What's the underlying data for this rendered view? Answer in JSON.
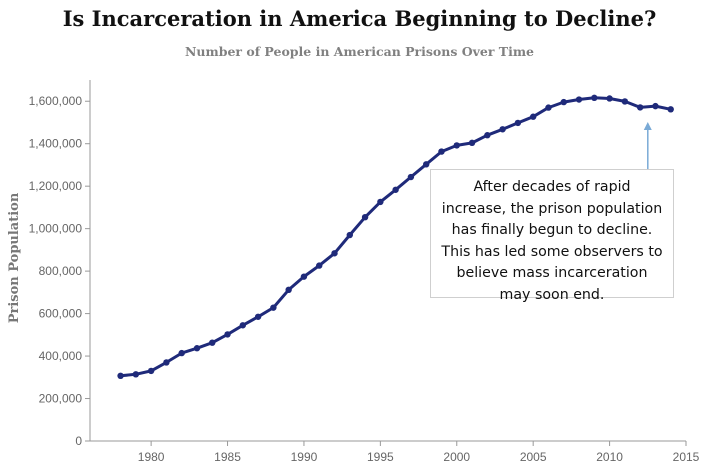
{
  "chart_data": {
    "type": "line",
    "title": "Is Incarceration in America Beginning to Decline?",
    "subtitle": "Number of People in American Prisons Over Time",
    "xlabel": "",
    "ylabel": "Prison Population",
    "xlim": [
      1976,
      2015
    ],
    "ylim": [
      0,
      1700000
    ],
    "x_ticks": [
      1980,
      1985,
      1990,
      1995,
      2000,
      2005,
      2010,
      2015
    ],
    "y_ticks": [
      0,
      200000,
      400000,
      600000,
      800000,
      1000000,
      1200000,
      1400000,
      1600000
    ],
    "y_tick_labels": [
      "0",
      "200,000",
      "400,000",
      "600,000",
      "800,000",
      "1,000,000",
      "1,200,000",
      "1,400,000",
      "1,600,000"
    ],
    "series": [
      {
        "name": "Prison Population",
        "color": "#1f2a7a",
        "x": [
          1978,
          1979,
          1980,
          1981,
          1982,
          1983,
          1984,
          1985,
          1986,
          1987,
          1988,
          1989,
          1990,
          1991,
          1992,
          1993,
          1994,
          1995,
          1996,
          1997,
          1998,
          1999,
          2000,
          2001,
          2002,
          2003,
          2004,
          2005,
          2006,
          2007,
          2008,
          2009,
          2010,
          2011,
          2012,
          2013,
          2014
        ],
        "values": [
          307000,
          314000,
          330000,
          370000,
          414000,
          437000,
          463000,
          502000,
          545000,
          585000,
          628000,
          712000,
          774000,
          826000,
          884000,
          970000,
          1054000,
          1126000,
          1183000,
          1243000,
          1303000,
          1363000,
          1392000,
          1404000,
          1440000,
          1468000,
          1498000,
          1527000,
          1570000,
          1596000,
          1608000,
          1616000,
          1613000,
          1599000,
          1571000,
          1577000,
          1562000
        ]
      }
    ],
    "annotation": {
      "lines": [
        "After decades of rapid",
        "increase, the prison population",
        "has finally begun to decline.",
        "This has led some observers to",
        "believe mass incarceration",
        "may soon end."
      ],
      "arrow_year": 2012.5,
      "arrow_color": "#7aaad6"
    }
  }
}
